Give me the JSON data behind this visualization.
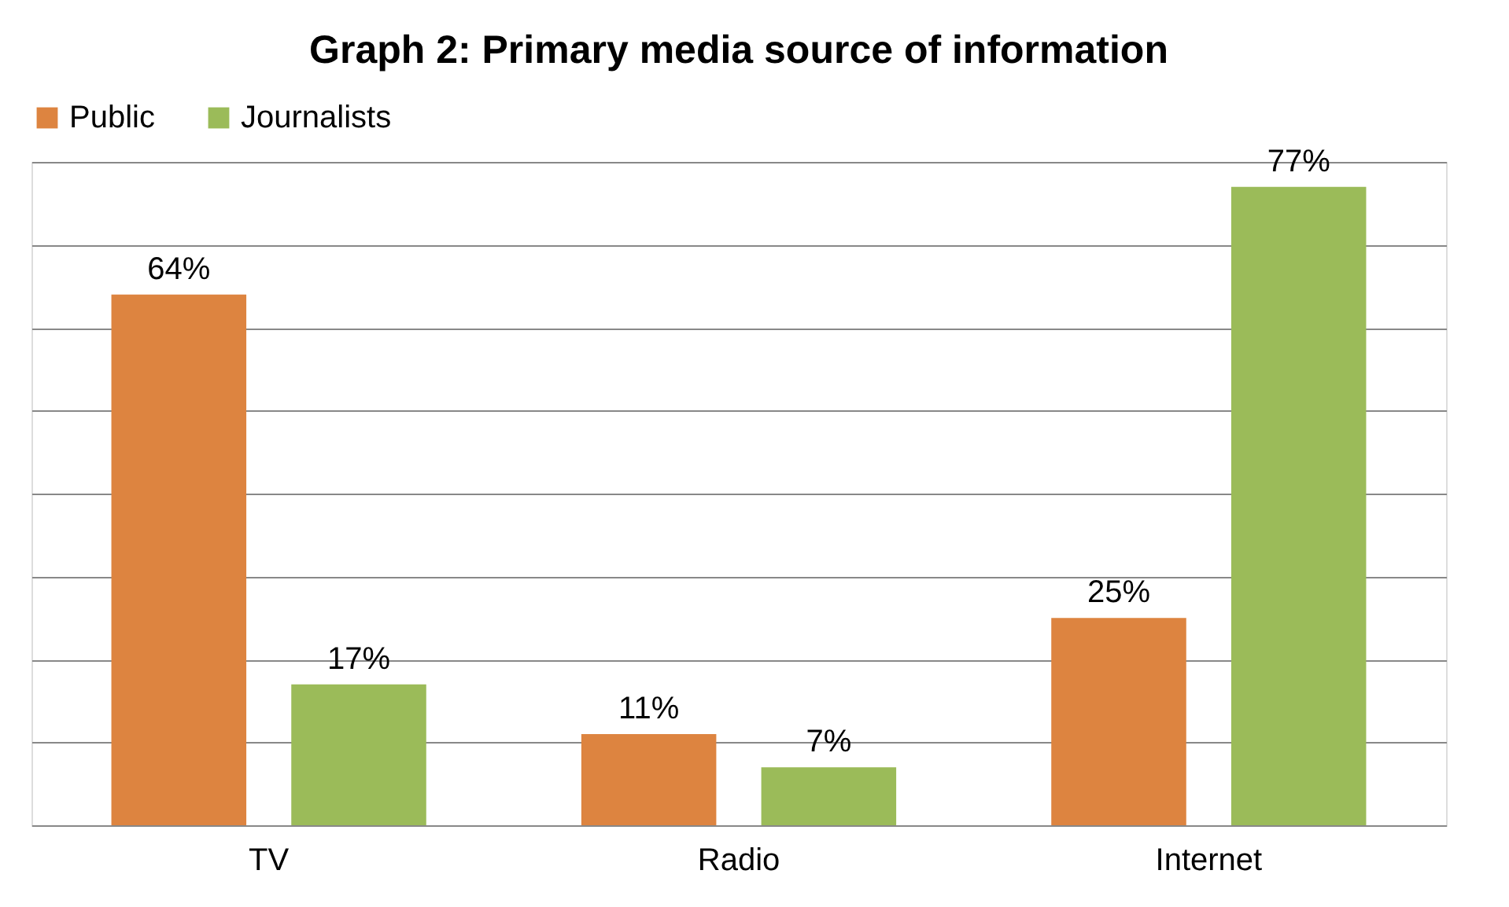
{
  "chart_data": {
    "type": "bar",
    "title": "Graph 2: Primary media source of information",
    "categories": [
      "TV",
      "Radio",
      "Internet"
    ],
    "series": [
      {
        "name": "Public",
        "color": "#dd8440",
        "values": [
          64,
          11,
          25
        ],
        "value_labels": [
          "64%",
          "11%",
          "25%"
        ]
      },
      {
        "name": "Journalists",
        "color": "#9bbb59",
        "values": [
          17,
          7,
          77
        ],
        "value_labels": [
          "17%",
          "7%",
          "77%"
        ]
      }
    ],
    "tick_labels": "x",
    "grid": "y",
    "legend": "top"
  }
}
